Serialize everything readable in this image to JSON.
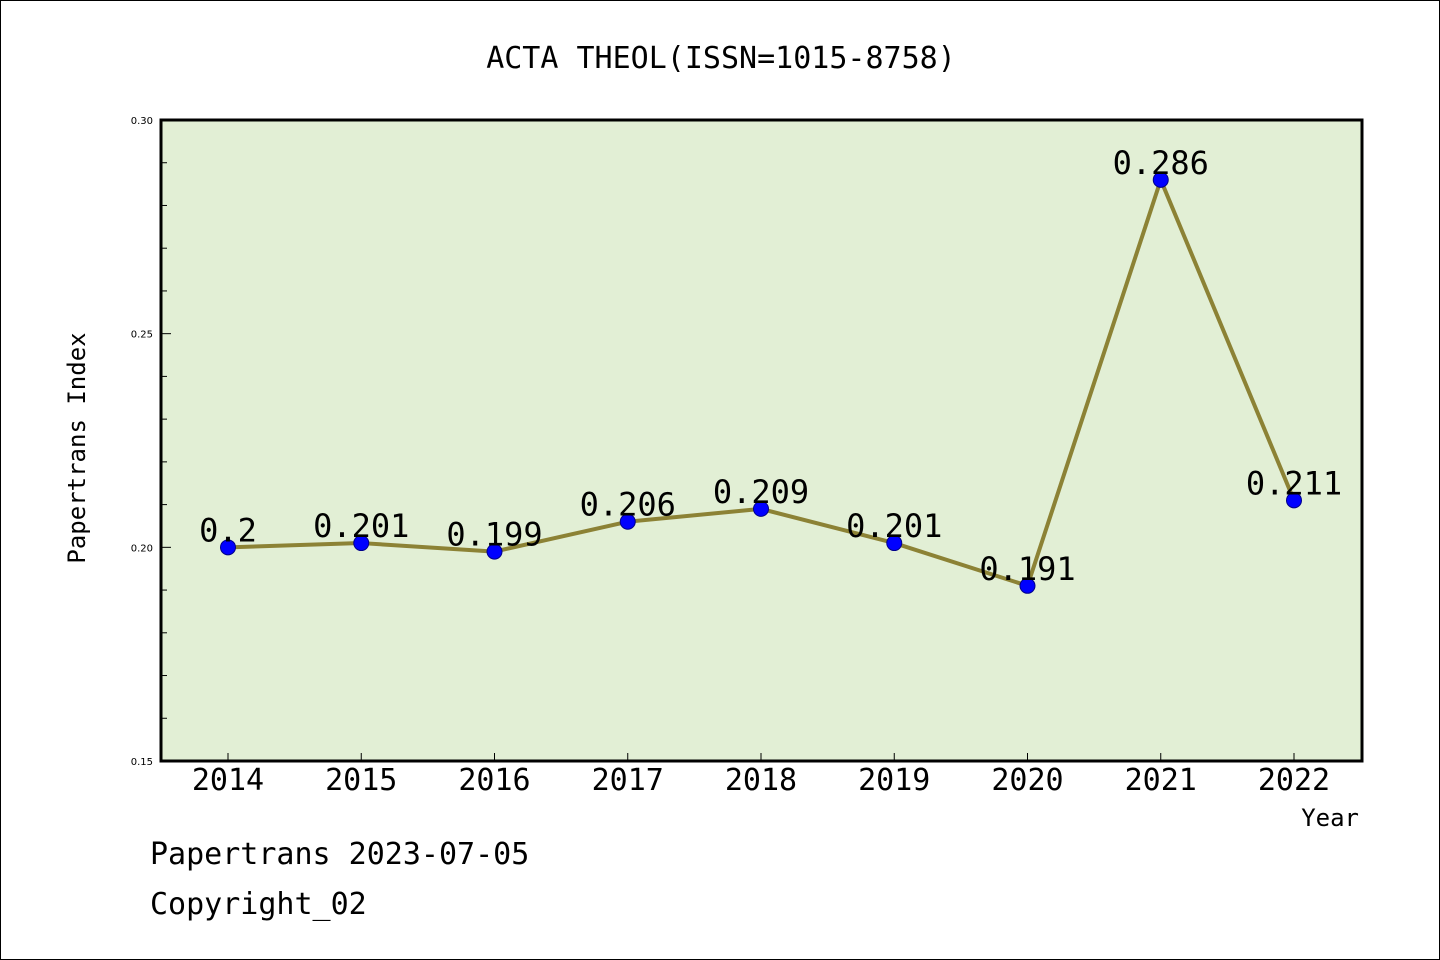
{
  "chart_data": {
    "type": "line",
    "title": "ACTA THEOL(ISSN=1015-8758)",
    "xlabel": "Year",
    "ylabel": "Papertrans Index",
    "categories": [
      "2014",
      "2015",
      "2016",
      "2017",
      "2018",
      "2019",
      "2020",
      "2021",
      "2022"
    ],
    "values": [
      0.2,
      0.201,
      0.199,
      0.206,
      0.209,
      0.201,
      0.191,
      0.286,
      0.211
    ],
    "data_labels": [
      "0.2",
      "0.201",
      "0.199",
      "0.206",
      "0.209",
      "0.201",
      "0.191",
      "0.286",
      "0.211"
    ],
    "ylim": [
      0.15,
      0.3
    ],
    "yticks": [
      0.15,
      0.2,
      0.25,
      0.3
    ],
    "ytick_labels": [
      "0.15",
      "0.20",
      "0.25",
      "0.30"
    ],
    "y_minor_step": 0.01,
    "grid": false,
    "legend": "none",
    "colors": {
      "plot_background": "#e2efd5",
      "line": "#8c8235",
      "marker": "#0000ff",
      "marker_edge": "#00008b"
    }
  },
  "footer": {
    "line1": "Papertrans 2023-07-05",
    "line2": "Copyright_02"
  }
}
